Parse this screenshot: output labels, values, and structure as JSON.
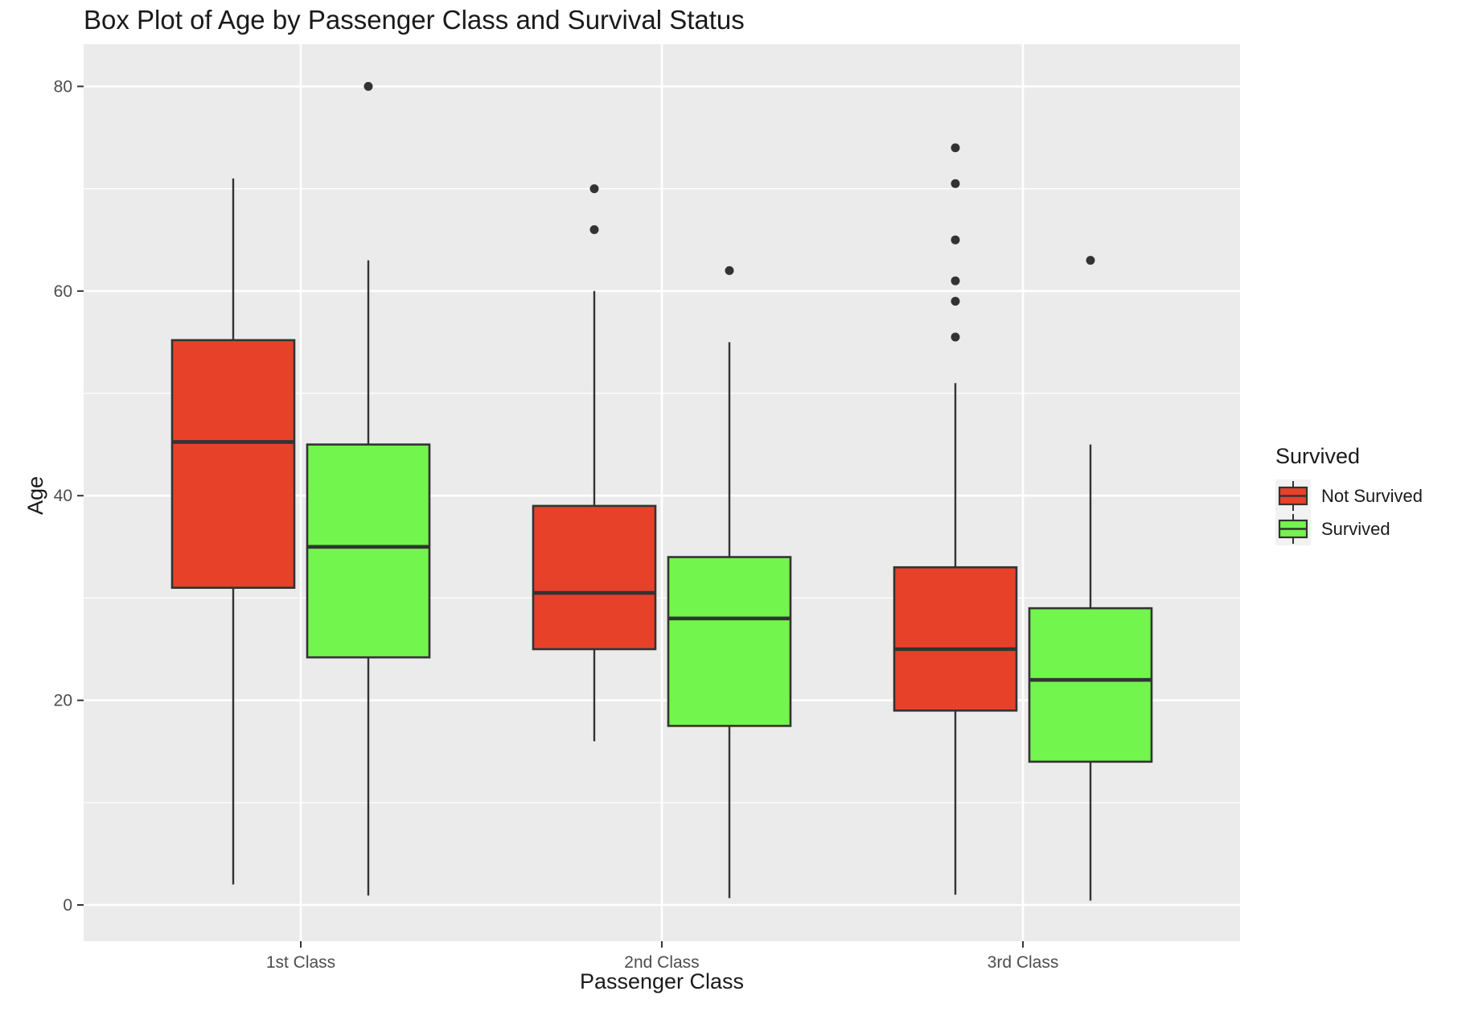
{
  "chart_data": {
    "type": "boxplot",
    "title": "Box Plot of Age by Passenger Class and Survival Status",
    "xlabel": "Passenger Class",
    "ylabel": "Age",
    "ylim": [
      -4.5,
      87.5
    ],
    "yticks": [
      0,
      20,
      40,
      60,
      80
    ],
    "y_minor_gridlines": [
      10,
      30,
      50,
      70
    ],
    "grid": true,
    "categories": [
      "1st Class",
      "2nd Class",
      "3rd Class"
    ],
    "legend": {
      "title": "Survived",
      "placement": "right"
    },
    "series": [
      {
        "name": "Not Survived",
        "color": "#e8412a",
        "boxes": [
          {
            "category": "1st Class",
            "whisker_low": 2,
            "q1": 31,
            "median": 45.25,
            "q3": 55.2,
            "whisker_high": 71,
            "outliers": []
          },
          {
            "category": "2nd Class",
            "whisker_low": 16,
            "q1": 25,
            "median": 30.5,
            "q3": 39,
            "whisker_high": 60,
            "outliers": [
              66,
              70
            ]
          },
          {
            "category": "3rd Class",
            "whisker_low": 1,
            "q1": 19,
            "median": 25,
            "q3": 33,
            "whisker_high": 51,
            "outliers": [
              55.5,
              59,
              61,
              65,
              70.5,
              74
            ]
          }
        ]
      },
      {
        "name": "Survived",
        "color": "#72f54c",
        "boxes": [
          {
            "category": "1st Class",
            "whisker_low": 0.92,
            "q1": 24.2,
            "median": 35,
            "q3": 45,
            "whisker_high": 63,
            "outliers": [
              80
            ]
          },
          {
            "category": "2nd Class",
            "whisker_low": 0.67,
            "q1": 17.5,
            "median": 28,
            "q3": 34,
            "whisker_high": 55,
            "outliers": [
              62
            ]
          },
          {
            "category": "3rd Class",
            "whisker_low": 0.42,
            "q1": 14,
            "median": 22,
            "q3": 29,
            "whisker_high": 45,
            "outliers": [
              63
            ]
          }
        ]
      }
    ]
  },
  "colors": {
    "panel_background": "#ebebeb",
    "grid": "#ffffff",
    "box_outline": "#333333",
    "outlier": "#333333"
  }
}
